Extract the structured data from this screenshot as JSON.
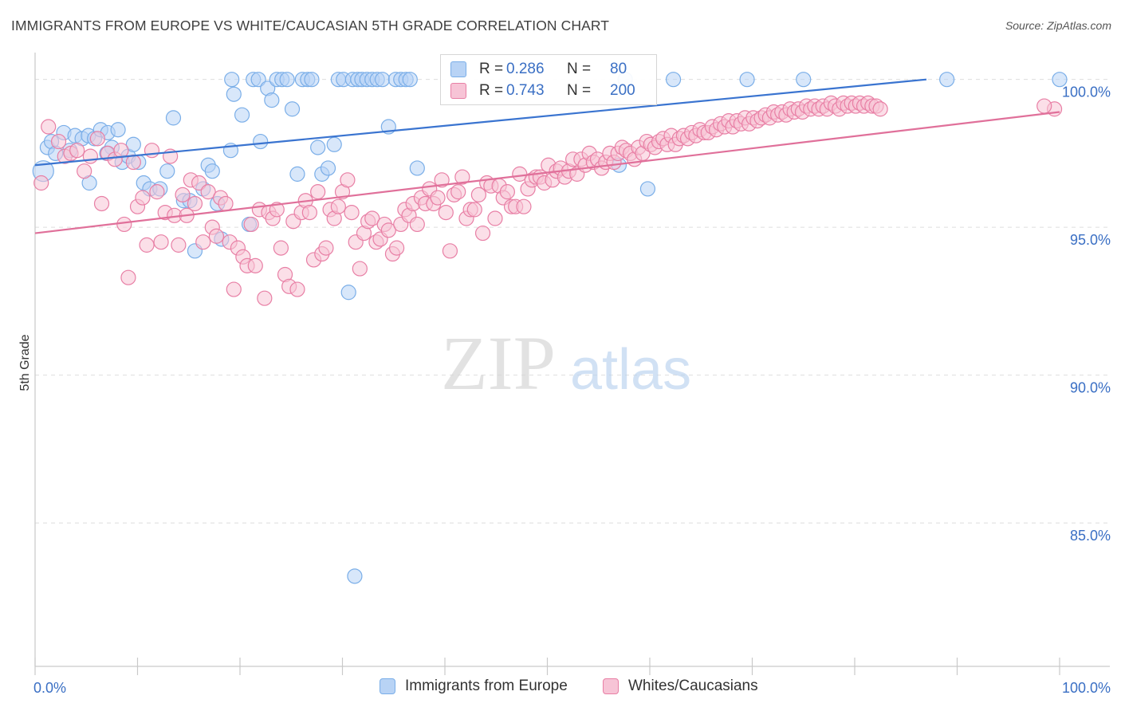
{
  "header": {
    "title": "IMMIGRANTS FROM EUROPE VS WHITE/CAUCASIAN 5TH GRADE CORRELATION CHART",
    "source": "Source: ZipAtlas.com"
  },
  "watermark": {
    "zip": "ZIP",
    "atlas": "atlas"
  },
  "stats": [
    {
      "r_label": "R =",
      "r_value": "0.286",
      "n_label": "N =",
      "n_value": "80",
      "color": "#7aaee8",
      "fill": "#b8d3f5"
    },
    {
      "r_label": "R =",
      "r_value": "0.743",
      "n_label": "N =",
      "n_value": "200",
      "color": "#e87fa5",
      "fill": "#f7c4d6"
    }
  ],
  "legend": [
    {
      "label": "Immigrants from Europe",
      "color": "#7aaee8",
      "fill": "#b8d3f5"
    },
    {
      "label": "Whites/Caucasians",
      "color": "#e87fa5",
      "fill": "#f7c4d6"
    }
  ],
  "chart_data": {
    "type": "scatter",
    "xlabel": "",
    "ylabel": "5th Grade",
    "xlim": [
      0,
      100
    ],
    "ylim": [
      80.5,
      100.8
    ],
    "x_ticks": [
      "0.0%",
      "100.0%"
    ],
    "y_ticks": [
      {
        "value": 100,
        "label": "100.0%"
      },
      {
        "value": 95,
        "label": "95.0%"
      },
      {
        "value": 90,
        "label": "90.0%"
      },
      {
        "value": 85,
        "label": "85.0%"
      }
    ],
    "grid": "horizontal dashed",
    "series": [
      {
        "name": "Immigrants from Europe",
        "color": "#7aaee8",
        "fill": "#b8d3f5",
        "line_color": "#3a74d0",
        "trend": {
          "x": [
            0,
            87
          ],
          "y": [
            97.1,
            100.0
          ]
        },
        "points": [
          [
            0.8,
            96.9
          ],
          [
            1.2,
            97.7
          ],
          [
            1.6,
            97.9
          ],
          [
            2.0,
            97.5
          ],
          [
            2.8,
            98.2
          ],
          [
            3.4,
            97.6
          ],
          [
            3.9,
            98.1
          ],
          [
            4.6,
            98.0
          ],
          [
            5.2,
            98.1
          ],
          [
            5.8,
            98.0
          ],
          [
            6.4,
            98.3
          ],
          [
            7.1,
            98.2
          ],
          [
            7.5,
            97.7
          ],
          [
            8.1,
            98.3
          ],
          [
            8.5,
            97.2
          ],
          [
            9.1,
            97.4
          ],
          [
            9.6,
            97.8
          ],
          [
            10.1,
            97.2
          ],
          [
            5.3,
            96.5
          ],
          [
            10.6,
            96.5
          ],
          [
            11.2,
            96.3
          ],
          [
            12.2,
            96.3
          ],
          [
            12.9,
            96.9
          ],
          [
            13.5,
            98.7
          ],
          [
            14.5,
            95.9
          ],
          [
            15.1,
            95.9
          ],
          [
            15.6,
            94.2
          ],
          [
            16.4,
            96.3
          ],
          [
            16.9,
            97.1
          ],
          [
            17.3,
            96.9
          ],
          [
            17.8,
            95.8
          ],
          [
            18.2,
            94.6
          ],
          [
            19.1,
            97.6
          ],
          [
            19.4,
            99.5
          ],
          [
            19.2,
            100.0
          ],
          [
            20.2,
            98.8
          ],
          [
            20.9,
            95.1
          ],
          [
            21.3,
            100.0
          ],
          [
            21.8,
            100.0
          ],
          [
            22.0,
            97.9
          ],
          [
            22.7,
            99.7
          ],
          [
            23.1,
            99.3
          ],
          [
            23.6,
            100.0
          ],
          [
            24.1,
            100.0
          ],
          [
            24.6,
            100.0
          ],
          [
            25.1,
            99.0
          ],
          [
            25.6,
            96.8
          ],
          [
            26.1,
            100.0
          ],
          [
            26.6,
            100.0
          ],
          [
            27.0,
            100.0
          ],
          [
            27.6,
            97.7
          ],
          [
            28.0,
            96.8
          ],
          [
            28.6,
            97.0
          ],
          [
            29.2,
            97.8
          ],
          [
            29.6,
            100.0
          ],
          [
            30.1,
            100.0
          ],
          [
            30.6,
            92.8
          ],
          [
            31.0,
            100.0
          ],
          [
            31.5,
            100.0
          ],
          [
            31.9,
            100.0
          ],
          [
            32.4,
            100.0
          ],
          [
            32.9,
            100.0
          ],
          [
            33.4,
            100.0
          ],
          [
            33.9,
            100.0
          ],
          [
            34.5,
            98.4
          ],
          [
            35.2,
            100.0
          ],
          [
            35.7,
            100.0
          ],
          [
            36.2,
            100.0
          ],
          [
            36.6,
            100.0
          ],
          [
            37.3,
            97.0
          ],
          [
            31.2,
            83.2
          ],
          [
            57.0,
            97.1
          ],
          [
            57.6,
            100.0
          ],
          [
            62.3,
            100.0
          ],
          [
            59.8,
            96.3
          ],
          [
            69.5,
            100.0
          ],
          [
            75.0,
            100.0
          ],
          [
            89.0,
            100.0
          ],
          [
            100.0,
            100.0
          ],
          [
            7.0,
            97.5
          ]
        ]
      },
      {
        "name": "Whites/Caucasians",
        "color": "#e87fa5",
        "fill": "#f7c4d6",
        "line_color": "#e0709a",
        "trend": {
          "x": [
            0,
            100
          ],
          "y": [
            94.8,
            98.9
          ]
        },
        "points": [
          [
            0.6,
            96.5
          ],
          [
            1.3,
            98.4
          ],
          [
            2.3,
            97.9
          ],
          [
            2.9,
            97.4
          ],
          [
            3.5,
            97.5
          ],
          [
            4.1,
            97.6
          ],
          [
            4.8,
            96.9
          ],
          [
            5.4,
            97.4
          ],
          [
            6.1,
            98.0
          ],
          [
            6.5,
            95.8
          ],
          [
            7.1,
            97.5
          ],
          [
            7.8,
            97.3
          ],
          [
            8.4,
            97.6
          ],
          [
            8.7,
            95.1
          ],
          [
            9.1,
            93.3
          ],
          [
            9.6,
            97.2
          ],
          [
            10.0,
            95.7
          ],
          [
            10.5,
            96.0
          ],
          [
            10.9,
            94.4
          ],
          [
            11.4,
            97.6
          ],
          [
            11.9,
            96.2
          ],
          [
            12.3,
            94.5
          ],
          [
            12.7,
            95.5
          ],
          [
            13.2,
            97.4
          ],
          [
            13.6,
            95.4
          ],
          [
            14.0,
            94.4
          ],
          [
            14.4,
            96.1
          ],
          [
            14.8,
            95.4
          ],
          [
            15.2,
            96.6
          ],
          [
            15.6,
            95.8
          ],
          [
            16.0,
            96.5
          ],
          [
            16.4,
            94.5
          ],
          [
            16.9,
            96.2
          ],
          [
            17.3,
            95.0
          ],
          [
            17.7,
            94.7
          ],
          [
            18.1,
            96.0
          ],
          [
            18.6,
            95.8
          ],
          [
            19.0,
            94.5
          ],
          [
            19.4,
            92.9
          ],
          [
            19.8,
            94.3
          ],
          [
            20.3,
            94.0
          ],
          [
            20.7,
            93.7
          ],
          [
            21.1,
            95.1
          ],
          [
            21.5,
            93.7
          ],
          [
            21.9,
            95.6
          ],
          [
            22.4,
            92.6
          ],
          [
            22.8,
            95.5
          ],
          [
            23.2,
            95.3
          ],
          [
            23.6,
            95.6
          ],
          [
            24.0,
            94.3
          ],
          [
            24.4,
            93.4
          ],
          [
            24.8,
            93.0
          ],
          [
            25.2,
            95.2
          ],
          [
            25.6,
            92.9
          ],
          [
            26.0,
            95.5
          ],
          [
            26.4,
            95.9
          ],
          [
            26.8,
            95.5
          ],
          [
            27.2,
            93.9
          ],
          [
            27.6,
            96.2
          ],
          [
            28.0,
            94.1
          ],
          [
            28.4,
            94.3
          ],
          [
            28.8,
            95.6
          ],
          [
            29.2,
            95.3
          ],
          [
            29.6,
            95.7
          ],
          [
            30.0,
            96.2
          ],
          [
            30.5,
            96.6
          ],
          [
            30.9,
            95.5
          ],
          [
            31.3,
            94.5
          ],
          [
            31.7,
            93.6
          ],
          [
            32.1,
            94.8
          ],
          [
            32.5,
            95.2
          ],
          [
            32.9,
            95.3
          ],
          [
            33.3,
            94.5
          ],
          [
            33.7,
            94.6
          ],
          [
            34.1,
            95.1
          ],
          [
            34.5,
            94.9
          ],
          [
            34.9,
            94.1
          ],
          [
            35.3,
            94.3
          ],
          [
            35.7,
            95.1
          ],
          [
            36.1,
            95.6
          ],
          [
            36.5,
            95.4
          ],
          [
            36.9,
            95.8
          ],
          [
            37.3,
            95.1
          ],
          [
            37.7,
            96.0
          ],
          [
            38.1,
            95.8
          ],
          [
            38.5,
            96.3
          ],
          [
            38.9,
            95.8
          ],
          [
            39.3,
            96.0
          ],
          [
            39.7,
            96.6
          ],
          [
            40.1,
            95.5
          ],
          [
            40.5,
            94.2
          ],
          [
            40.9,
            96.1
          ],
          [
            41.3,
            96.2
          ],
          [
            41.7,
            96.7
          ],
          [
            42.1,
            95.3
          ],
          [
            42.5,
            95.6
          ],
          [
            42.9,
            95.6
          ],
          [
            43.3,
            96.1
          ],
          [
            43.7,
            94.8
          ],
          [
            44.1,
            96.5
          ],
          [
            44.5,
            96.4
          ],
          [
            44.9,
            95.3
          ],
          [
            45.3,
            96.4
          ],
          [
            45.7,
            96.0
          ],
          [
            46.1,
            96.2
          ],
          [
            46.5,
            95.7
          ],
          [
            46.9,
            95.7
          ],
          [
            47.3,
            96.8
          ],
          [
            47.7,
            95.7
          ],
          [
            48.1,
            96.3
          ],
          [
            48.5,
            96.6
          ],
          [
            48.9,
            96.7
          ],
          [
            49.3,
            96.7
          ],
          [
            49.7,
            96.5
          ],
          [
            50.1,
            97.1
          ],
          [
            50.5,
            96.6
          ],
          [
            50.9,
            96.9
          ],
          [
            51.3,
            97.0
          ],
          [
            51.7,
            96.7
          ],
          [
            52.1,
            96.9
          ],
          [
            52.5,
            97.3
          ],
          [
            52.9,
            96.8
          ],
          [
            53.3,
            97.3
          ],
          [
            53.7,
            97.1
          ],
          [
            54.1,
            97.5
          ],
          [
            54.5,
            97.2
          ],
          [
            54.9,
            97.3
          ],
          [
            55.3,
            97.0
          ],
          [
            55.7,
            97.2
          ],
          [
            56.1,
            97.5
          ],
          [
            56.5,
            97.2
          ],
          [
            56.9,
            97.5
          ],
          [
            57.3,
            97.7
          ],
          [
            57.7,
            97.6
          ],
          [
            58.1,
            97.5
          ],
          [
            58.5,
            97.3
          ],
          [
            58.9,
            97.7
          ],
          [
            59.3,
            97.5
          ],
          [
            59.7,
            97.9
          ],
          [
            60.1,
            97.8
          ],
          [
            60.5,
            97.7
          ],
          [
            60.9,
            97.9
          ],
          [
            61.3,
            98.0
          ],
          [
            61.7,
            97.8
          ],
          [
            62.1,
            98.1
          ],
          [
            62.5,
            97.8
          ],
          [
            62.9,
            98.0
          ],
          [
            63.3,
            98.1
          ],
          [
            63.7,
            98.0
          ],
          [
            64.1,
            98.2
          ],
          [
            64.5,
            98.1
          ],
          [
            64.9,
            98.3
          ],
          [
            65.3,
            98.2
          ],
          [
            65.7,
            98.2
          ],
          [
            66.1,
            98.4
          ],
          [
            66.5,
            98.3
          ],
          [
            66.9,
            98.5
          ],
          [
            67.3,
            98.4
          ],
          [
            67.7,
            98.6
          ],
          [
            68.1,
            98.4
          ],
          [
            68.5,
            98.6
          ],
          [
            68.9,
            98.5
          ],
          [
            69.3,
            98.7
          ],
          [
            69.7,
            98.5
          ],
          [
            70.1,
            98.7
          ],
          [
            70.5,
            98.6
          ],
          [
            70.9,
            98.7
          ],
          [
            71.3,
            98.8
          ],
          [
            71.7,
            98.7
          ],
          [
            72.1,
            98.9
          ],
          [
            72.5,
            98.8
          ],
          [
            72.9,
            98.9
          ],
          [
            73.3,
            98.8
          ],
          [
            73.7,
            99.0
          ],
          [
            74.1,
            98.9
          ],
          [
            74.5,
            99.0
          ],
          [
            74.9,
            98.9
          ],
          [
            75.3,
            99.1
          ],
          [
            75.7,
            99.0
          ],
          [
            76.1,
            99.1
          ],
          [
            76.5,
            99.0
          ],
          [
            76.9,
            99.1
          ],
          [
            77.3,
            99.0
          ],
          [
            77.7,
            99.2
          ],
          [
            78.1,
            99.1
          ],
          [
            78.5,
            99.0
          ],
          [
            78.9,
            99.2
          ],
          [
            79.3,
            99.1
          ],
          [
            79.7,
            99.2
          ],
          [
            80.1,
            99.1
          ],
          [
            80.5,
            99.2
          ],
          [
            80.9,
            99.1
          ],
          [
            81.3,
            99.2
          ],
          [
            81.7,
            99.1
          ],
          [
            82.1,
            99.1
          ],
          [
            82.5,
            99.0
          ],
          [
            99.5,
            99.0
          ],
          [
            98.5,
            99.1
          ]
        ]
      }
    ]
  }
}
